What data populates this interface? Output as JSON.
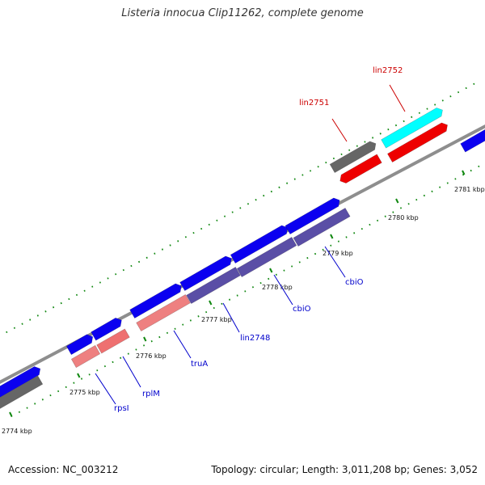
{
  "title": "Listeria innocua Clip11262, complete genome",
  "footer": {
    "accession": "Accession: NC_003212",
    "topology": "Topology: circular; Length: 3,011,208 bp; Genes: 3,052"
  },
  "colors": {
    "forward_cds": "#0b00f0",
    "reverse_cds": "#5a4ea6",
    "rrna": "#ee8080",
    "rrna_rev": "#ee7070",
    "highlight_forward": "#00ffff",
    "highlight_reverse": "#ee0000",
    "gray_gene": "#666666",
    "backbone": "#8e8e8e",
    "tick": "#118811",
    "label_blue": "#0000cc",
    "label_red": "#cc0000"
  },
  "ticks": [
    "2774 kbp",
    "2775 kbp",
    "2776 kbp",
    "2777 kbp",
    "2778 kbp",
    "2779 kbp",
    "2780 kbp",
    "2781 kbp"
  ],
  "gene_labels": [
    {
      "text": "rpsI",
      "color": "blue"
    },
    {
      "text": "rplM",
      "color": "blue"
    },
    {
      "text": "truA",
      "color": "blue"
    },
    {
      "text": "lin2748",
      "color": "blue"
    },
    {
      "text": "cbiO",
      "color": "blue"
    },
    {
      "text": "cbiO",
      "color": "blue"
    },
    {
      "text": "lin2751",
      "color": "red"
    },
    {
      "text": "lin2752",
      "color": "red"
    }
  ]
}
